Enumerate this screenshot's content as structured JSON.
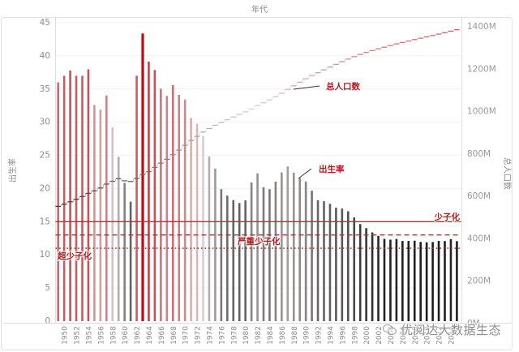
{
  "chart_data": {
    "type": "bar",
    "title": "年代",
    "xlabel": "年代",
    "ylabel": "出生率",
    "y2label": "总人口数",
    "ylim": [
      0,
      45
    ],
    "y2lim": [
      0,
      1400
    ],
    "y_ticks": [
      0,
      5,
      10,
      15,
      20,
      25,
      30,
      35,
      40,
      45
    ],
    "y2_ticks": [
      "0M",
      "200M",
      "400M",
      "600M",
      "800M",
      "1000M",
      "1200M",
      "1400M"
    ],
    "x_tick_labels": [
      "1950",
      "1952",
      "1954",
      "1956",
      "1958",
      "1960",
      "1962",
      "1964",
      "1966",
      "1968",
      "1970",
      "1972",
      "1974",
      "1976",
      "1978",
      "1980",
      "1982",
      "1984",
      "1986",
      "1988",
      "1990",
      "1992",
      "1994",
      "1996",
      "1998",
      "2000",
      "2002",
      "2004",
      "2006",
      "2008",
      "2010",
      "2012",
      "2014"
    ],
    "grid": true,
    "legend": null,
    "x": [
      1949,
      1950,
      1951,
      1952,
      1953,
      1954,
      1955,
      1956,
      1957,
      1958,
      1959,
      1960,
      1961,
      1962,
      1963,
      1964,
      1965,
      1966,
      1967,
      1968,
      1969,
      1970,
      1971,
      1972,
      1973,
      1974,
      1975,
      1976,
      1977,
      1978,
      1979,
      1980,
      1981,
      1982,
      1983,
      1984,
      1985,
      1986,
      1987,
      1988,
      1989,
      1990,
      1991,
      1992,
      1993,
      1994,
      1995,
      1996,
      1997,
      1998,
      1999,
      2000,
      2001,
      2002,
      2003,
      2004,
      2005,
      2006,
      2007,
      2008,
      2009,
      2010,
      2011,
      2012,
      2013,
      2014,
      2015
    ],
    "series": [
      {
        "name": "出生率",
        "type": "bar",
        "axis": "left",
        "values": [
          36.0,
          37.0,
          37.8,
          37.0,
          37.0,
          37.97,
          32.6,
          31.9,
          34.03,
          29.22,
          24.78,
          20.86,
          18.02,
          37.01,
          43.37,
          39.14,
          37.88,
          35.05,
          33.96,
          35.59,
          34.11,
          33.43,
          30.65,
          29.77,
          27.93,
          24.82,
          23.01,
          19.91,
          18.93,
          18.25,
          17.82,
          18.21,
          20.91,
          22.28,
          20.19,
          19.9,
          21.04,
          22.43,
          23.33,
          22.37,
          21.58,
          21.06,
          19.68,
          18.24,
          18.09,
          17.7,
          17.12,
          16.98,
          16.57,
          15.64,
          14.64,
          14.03,
          13.38,
          12.86,
          12.41,
          12.29,
          12.4,
          12.09,
          12.1,
          12.14,
          11.95,
          11.9,
          11.93,
          12.1,
          12.08,
          12.37,
          12.07
        ]
      },
      {
        "name": "总人口数",
        "type": "step-line",
        "axis": "right",
        "unit": "M",
        "values": [
          541.67,
          551.96,
          563.0,
          574.82,
          587.96,
          602.66,
          614.65,
          628.28,
          646.53,
          659.94,
          672.07,
          662.07,
          658.59,
          672.95,
          691.72,
          704.99,
          725.38,
          745.42,
          763.68,
          785.34,
          806.71,
          829.92,
          852.29,
          871.77,
          892.11,
          908.59,
          924.2,
          937.17,
          949.74,
          962.59,
          975.42,
          987.05,
          1000.72,
          1016.54,
          1030.08,
          1043.57,
          1058.51,
          1075.07,
          1093.0,
          1110.26,
          1127.04,
          1143.33,
          1158.23,
          1171.71,
          1185.17,
          1198.5,
          1211.21,
          1223.89,
          1236.26,
          1247.61,
          1257.86,
          1267.43,
          1276.27,
          1284.53,
          1292.27,
          1299.88,
          1307.56,
          1314.48,
          1321.29,
          1328.02,
          1334.5,
          1340.91,
          1347.35,
          1354.04,
          1360.72,
          1367.82,
          1374.62
        ]
      }
    ],
    "reference_lines": [
      {
        "label": "少子化",
        "value": 15,
        "style": "solid"
      },
      {
        "label": "严重少子化",
        "value": 13,
        "style": "dashed"
      },
      {
        "label": "超少子化",
        "value": 11,
        "style": "dotted"
      }
    ],
    "annotations": [
      {
        "label": "总人口数",
        "target": "population-line",
        "year": 1988
      },
      {
        "label": "出生率",
        "target": "birth-rate-bars",
        "year": 1990
      }
    ],
    "colors": {
      "bar_high": "#bf0a14",
      "bar_mid": "#d8d0d0",
      "bar_low": "#1e1e1e",
      "pop_low": "#3a3a3a",
      "pop_mid": "#d2d2d2",
      "pop_high": "#c86464",
      "ref_line": "#c8282d",
      "annotation": "#c0141c",
      "grid": "#f1f1f1",
      "axis": "#dddddd"
    }
  },
  "labels": {
    "top_title": "年代",
    "left_axis_title": "出生率",
    "right_axis_title": "总人口数",
    "annot_population": "总人口数",
    "annot_birth_rate": "出生率",
    "ref_low_birth": "少子化",
    "ref_severe_low_birth": "严重少子化",
    "ref_ultra_low_birth": "超少子化"
  },
  "watermark": {
    "icon": "wechat-icon",
    "text": "优阅达大数据生态"
  }
}
